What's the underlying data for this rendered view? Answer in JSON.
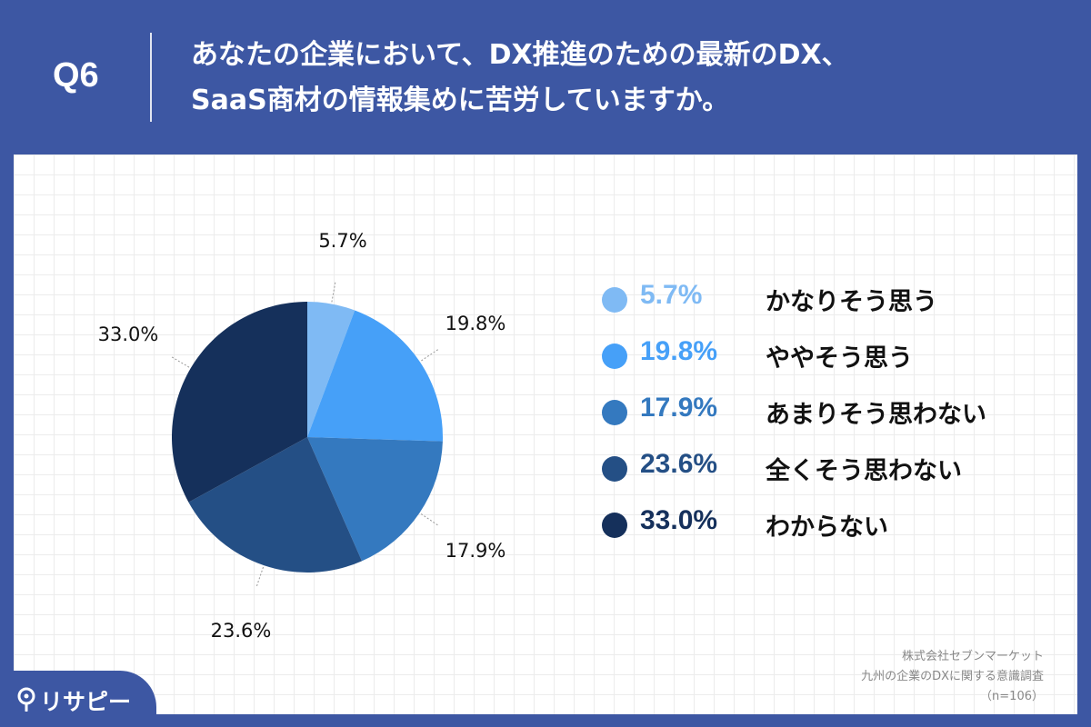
{
  "header": {
    "q_label": "Q6",
    "question_line1": "あなたの企業において、DX推進のための最新のDX、",
    "question_line2": "SaaS商材の情報集めに苦労していますか。"
  },
  "chart_data": {
    "type": "pie",
    "categories": [
      "かなりそう思う",
      "ややそう思う",
      "あまりそう思わない",
      "全くそう思わない",
      "わからない"
    ],
    "values": [
      5.7,
      19.8,
      17.9,
      23.6,
      33.0
    ],
    "labels": [
      "5.7%",
      "19.8%",
      "17.9%",
      "23.6%",
      "33.0%"
    ],
    "colors": [
      "#7fbaf4",
      "#46a0f8",
      "#3479bf",
      "#244f85",
      "#15305b"
    ],
    "legend_placement": "right"
  },
  "source": {
    "line1": "株式会社セブンマーケット",
    "line2": "九州の企業のDXに関する意識調査",
    "line3": "（n=106）"
  },
  "logo": {
    "text": "リサピー",
    "icon": "location-pin-icon"
  }
}
